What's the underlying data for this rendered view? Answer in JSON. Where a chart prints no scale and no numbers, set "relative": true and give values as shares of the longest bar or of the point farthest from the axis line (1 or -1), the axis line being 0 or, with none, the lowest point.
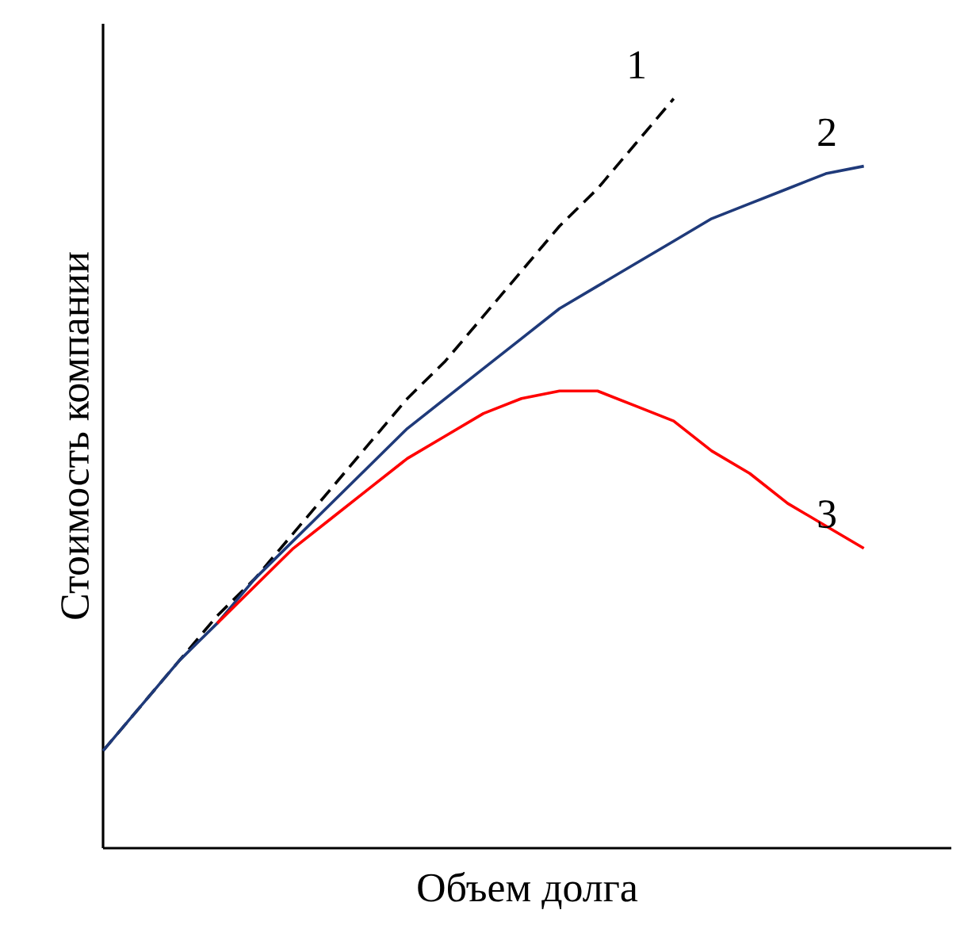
{
  "chart_data": {
    "type": "line",
    "xlabel": "Объем долга",
    "ylabel": "Стоимость компании",
    "relative": true,
    "categories": [
      null,
      null,
      null,
      null,
      null,
      null,
      null,
      null,
      null,
      null,
      null,
      null,
      null,
      null,
      null,
      null,
      null,
      null,
      null,
      null,
      null
    ],
    "series": [
      {
        "name": "1",
        "color": "#000000",
        "line_style": "dashed",
        "values": [
          0.13,
          0.19,
          0.25,
          0.31,
          0.36,
          0.42,
          0.48,
          0.54,
          0.6,
          0.65,
          0.71,
          0.77,
          0.83,
          0.88,
          0.94,
          1.0,
          null,
          null,
          null,
          null,
          null
        ]
      },
      {
        "name": "2",
        "color": "#1f3a7a",
        "line_style": "solid",
        "values": [
          0.13,
          0.19,
          0.25,
          0.3,
          0.36,
          0.41,
          0.46,
          0.51,
          0.56,
          0.6,
          0.64,
          0.68,
          0.72,
          0.75,
          0.78,
          0.81,
          0.84,
          0.86,
          0.88,
          0.9,
          0.91
        ]
      },
      {
        "name": "3",
        "color": "#ff0000",
        "line_style": "solid",
        "values": [
          null,
          null,
          null,
          0.3,
          0.35,
          0.4,
          0.44,
          0.48,
          0.52,
          0.55,
          0.58,
          0.6,
          0.61,
          0.61,
          0.59,
          0.57,
          0.53,
          0.5,
          0.46,
          0.43,
          0.4
        ]
      }
    ]
  }
}
